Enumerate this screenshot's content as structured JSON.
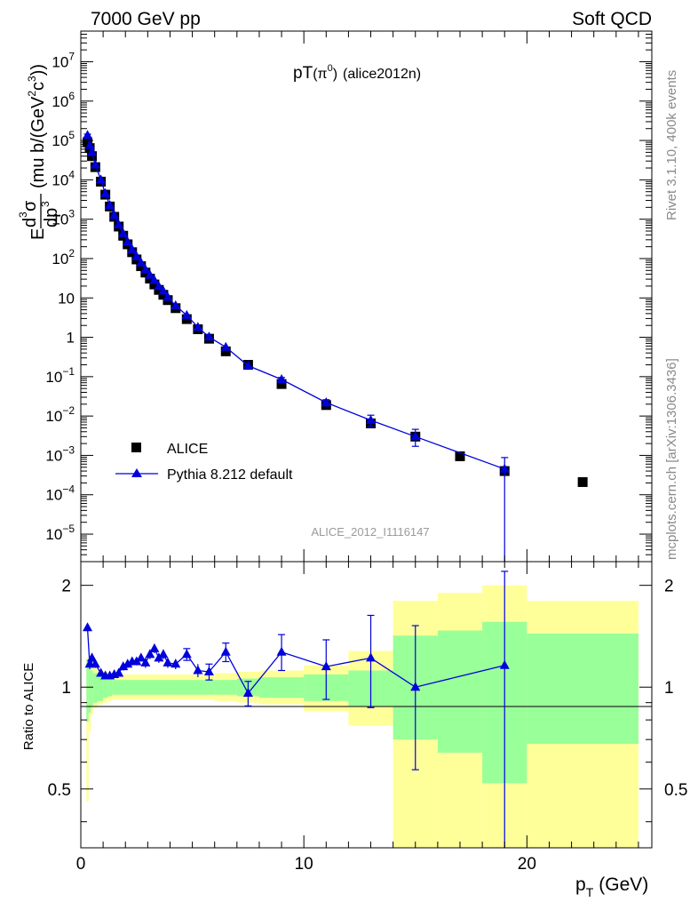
{
  "header": {
    "left": "7000 GeV pp",
    "right": "Soft QCD"
  },
  "title": {
    "main": "pT",
    "sub": "(π",
    "sup": "0",
    "close": ")",
    "tag": "(alice2012n)"
  },
  "side_labels": {
    "rivet": "Rivet 3.1.10,  400k events",
    "mcplots": "mcplots.cern.ch [arXiv:1306.3436]"
  },
  "watermark": "ALICE_2012_I1116147",
  "axes": {
    "xlabel_main": "p",
    "xlabel_sub": "T",
    "xlabel_unit": "(GeV)",
    "ratio_ylabel": "Ratio to ALICE",
    "ylabel": {
      "E": "E",
      "num_d": "d",
      "num_sup3": "3",
      "num_sigma": "σ",
      "den_dp": "dp",
      "den_sup3": "3",
      "unit_open": "(mu b/(GeV",
      "unit_sup2": "2",
      "unit_c": "c",
      "unit_sup3": "3",
      "unit_close": "))"
    }
  },
  "legend": {
    "data_label": "ALICE",
    "mc_label": "Pythia 8.212 default"
  },
  "colors": {
    "data": "#000000",
    "mc": "#0000dd",
    "band_inner": "#99ff99",
    "band_outer": "#ffff99"
  },
  "chart_data": {
    "type": "scatter",
    "x_axis": {
      "range": [
        0,
        25.6
      ],
      "ticks": [
        0,
        10,
        20
      ],
      "tick_labels": [
        "0",
        "10",
        "20"
      ]
    },
    "main_y_axis": {
      "scale": "log",
      "range": [
        2e-06,
        60000000.0
      ],
      "ticks": [
        1e-05,
        0.0001,
        0.001,
        0.01,
        0.1,
        1,
        10,
        100,
        1000.0,
        10000.0,
        100000.0,
        1000000.0,
        10000000.0
      ],
      "tick_labels": [
        {
          "base": "10",
          "exp": "−5"
        },
        {
          "base": "10",
          "exp": "−4"
        },
        {
          "base": "10",
          "exp": "−3"
        },
        {
          "base": "10",
          "exp": "−2"
        },
        {
          "base": "10",
          "exp": "−1"
        },
        {
          "base": "1",
          "exp": ""
        },
        {
          "base": "10",
          "exp": ""
        },
        {
          "base": "10",
          "exp": "2"
        },
        {
          "base": "10",
          "exp": "3"
        },
        {
          "base": "10",
          "exp": "4"
        },
        {
          "base": "10",
          "exp": "5"
        },
        {
          "base": "10",
          "exp": "6"
        },
        {
          "base": "10",
          "exp": "7"
        }
      ]
    },
    "ratio_y_axis": {
      "scale": "log",
      "range": [
        0.335,
        2.35
      ],
      "ticks": [
        0.5,
        1,
        2
      ],
      "tick_labels": [
        "0.5",
        "1",
        "2"
      ]
    },
    "series": [
      {
        "name": "ALICE",
        "marker": "square",
        "points": [
          {
            "x": 0.3,
            "y": 90000
          },
          {
            "x": 0.4,
            "y": 64000
          },
          {
            "x": 0.5,
            "y": 40000
          },
          {
            "x": 0.65,
            "y": 21000
          },
          {
            "x": 0.9,
            "y": 9000
          },
          {
            "x": 1.1,
            "y": 4200
          },
          {
            "x": 1.3,
            "y": 2100
          },
          {
            "x": 1.5,
            "y": 1150
          },
          {
            "x": 1.7,
            "y": 650
          },
          {
            "x": 1.9,
            "y": 380
          },
          {
            "x": 2.1,
            "y": 230
          },
          {
            "x": 2.3,
            "y": 145
          },
          {
            "x": 2.5,
            "y": 95
          },
          {
            "x": 2.7,
            "y": 64
          },
          {
            "x": 2.9,
            "y": 44
          },
          {
            "x": 3.1,
            "y": 31
          },
          {
            "x": 3.3,
            "y": 22
          },
          {
            "x": 3.5,
            "y": 16
          },
          {
            "x": 3.7,
            "y": 12
          },
          {
            "x": 3.9,
            "y": 8.8
          },
          {
            "x": 4.25,
            "y": 5.5
          },
          {
            "x": 4.75,
            "y": 2.9
          },
          {
            "x": 5.25,
            "y": 1.6
          },
          {
            "x": 5.75,
            "y": 0.92
          },
          {
            "x": 6.5,
            "y": 0.44
          },
          {
            "x": 7.5,
            "y": 0.2
          },
          {
            "x": 9.0,
            "y": 0.065
          },
          {
            "x": 11.0,
            "y": 0.019
          },
          {
            "x": 13.0,
            "y": 0.0065
          },
          {
            "x": 15.0,
            "y": 0.003
          },
          {
            "x": 17.0,
            "y": 0.00095
          },
          {
            "x": 19.0,
            "y": 0.0004
          },
          {
            "x": 22.5,
            "y": 0.00021
          }
        ]
      },
      {
        "name": "Pythia 8.212 default",
        "marker": "triangle",
        "points": [
          {
            "x": 0.3,
            "y": 135000,
            "ratio": 1.5,
            "rlo": 1.46,
            "rhi": 1.54,
            "ylo": 125000,
            "yhi": 145000
          },
          {
            "x": 0.4,
            "y": 75000,
            "ratio": 1.17,
            "rlo": 1.13,
            "rhi": 1.21
          },
          {
            "x": 0.5,
            "y": 50000,
            "ratio": 1.22,
            "rlo": 1.18,
            "rhi": 1.26
          },
          {
            "x": 0.65,
            "y": 24000,
            "ratio": 1.17,
            "rlo": 1.14,
            "rhi": 1.2
          },
          {
            "x": 0.9,
            "y": 10000,
            "ratio": 1.1,
            "rlo": 1.08,
            "rhi": 1.12
          },
          {
            "x": 1.1,
            "y": 4500,
            "ratio": 1.08,
            "rlo": 1.06,
            "rhi": 1.1
          },
          {
            "x": 1.3,
            "y": 2250,
            "ratio": 1.08,
            "rlo": 1.06,
            "rhi": 1.1
          },
          {
            "x": 1.5,
            "y": 1250,
            "ratio": 1.09,
            "rlo": 1.07,
            "rhi": 1.11
          },
          {
            "x": 1.7,
            "y": 720,
            "ratio": 1.1,
            "rlo": 1.08,
            "rhi": 1.12
          },
          {
            "x": 1.9,
            "y": 430,
            "ratio": 1.15,
            "rlo": 1.12,
            "rhi": 1.18
          },
          {
            "x": 2.1,
            "y": 265,
            "ratio": 1.17,
            "rlo": 1.14,
            "rhi": 1.2
          },
          {
            "x": 2.3,
            "y": 170,
            "ratio": 1.19,
            "rlo": 1.16,
            "rhi": 1.22
          },
          {
            "x": 2.5,
            "y": 113,
            "ratio": 1.19,
            "rlo": 1.16,
            "rhi": 1.22
          },
          {
            "x": 2.7,
            "y": 78,
            "ratio": 1.22,
            "rlo": 1.19,
            "rhi": 1.25
          },
          {
            "x": 2.9,
            "y": 52,
            "ratio": 1.18,
            "rlo": 1.14,
            "rhi": 1.22
          },
          {
            "x": 3.1,
            "y": 38,
            "ratio": 1.25,
            "rlo": 1.21,
            "rhi": 1.29
          },
          {
            "x": 3.3,
            "y": 28,
            "ratio": 1.3,
            "rlo": 1.26,
            "rhi": 1.34
          },
          {
            "x": 3.5,
            "y": 19.5,
            "ratio": 1.22,
            "rlo": 1.18,
            "rhi": 1.26
          },
          {
            "x": 3.7,
            "y": 15,
            "ratio": 1.25,
            "rlo": 1.21,
            "rhi": 1.29
          },
          {
            "x": 3.9,
            "y": 10.4,
            "ratio": 1.18,
            "rlo": 1.14,
            "rhi": 1.22
          },
          {
            "x": 4.25,
            "y": 6.4,
            "ratio": 1.17,
            "rlo": 1.13,
            "rhi": 1.21
          },
          {
            "x": 4.75,
            "y": 3.6,
            "ratio": 1.25,
            "rlo": 1.2,
            "rhi": 1.3
          },
          {
            "x": 5.25,
            "y": 1.8,
            "ratio": 1.12,
            "rlo": 1.07,
            "rhi": 1.17
          },
          {
            "x": 5.75,
            "y": 1.02,
            "ratio": 1.11,
            "rlo": 1.05,
            "rhi": 1.17
          },
          {
            "x": 6.5,
            "y": 0.56,
            "ratio": 1.27,
            "rlo": 1.19,
            "rhi": 1.35
          },
          {
            "x": 7.5,
            "y": 0.19,
            "ratio": 0.96,
            "rlo": 0.88,
            "rhi": 1.04
          },
          {
            "x": 9.0,
            "y": 0.085,
            "ratio": 1.27,
            "rlo": 1.12,
            "rhi": 1.43,
            "ylo": 0.075,
            "yhi": 0.095
          },
          {
            "x": 11.0,
            "y": 0.022,
            "ratio": 1.15,
            "rlo": 0.92,
            "rhi": 1.38,
            "ylo": 0.018,
            "yhi": 0.026
          },
          {
            "x": 13.0,
            "y": 0.0078,
            "ratio": 1.22,
            "rlo": 0.87,
            "rhi": 1.63,
            "ylo": 0.0055,
            "yhi": 0.0105
          },
          {
            "x": 15.0,
            "y": 0.003,
            "ratio": 1.0,
            "rlo": 0.57,
            "rhi": 1.52,
            "ylo": 0.0017,
            "yhi": 0.0046
          },
          {
            "x": 19.0,
            "y": 0.00045,
            "ratio": 1.16,
            "rlo": 0.26,
            "rhi": 2.2,
            "ylo": 1e-06,
            "yhi": 0.00088
          }
        ]
      }
    ],
    "uncertainty_bands": [
      {
        "x0": 0.25,
        "x1": 0.35,
        "inner": [
          0.79,
          1.21
        ],
        "outer": [
          0.46,
          1.22
        ]
      },
      {
        "x0": 0.35,
        "x1": 0.45,
        "inner": [
          0.84,
          1.16
        ],
        "outer": [
          0.74,
          1.18
        ]
      },
      {
        "x0": 0.45,
        "x1": 0.55,
        "inner": [
          0.88,
          1.12
        ],
        "outer": [
          0.83,
          1.16
        ]
      },
      {
        "x0": 0.55,
        "x1": 0.75,
        "inner": [
          0.9,
          1.1
        ],
        "outer": [
          0.87,
          1.14
        ]
      },
      {
        "x0": 0.75,
        "x1": 1.0,
        "inner": [
          0.91,
          1.09
        ],
        "outer": [
          0.89,
          1.12
        ]
      },
      {
        "x0": 1.0,
        "x1": 1.2,
        "inner": [
          0.93,
          1.07
        ],
        "outer": [
          0.9,
          1.11
        ]
      },
      {
        "x0": 1.2,
        "x1": 1.4,
        "inner": [
          0.94,
          1.06
        ],
        "outer": [
          0.91,
          1.1
        ]
      },
      {
        "x0": 1.4,
        "x1": 4.0,
        "inner": [
          0.95,
          1.05
        ],
        "outer": [
          0.92,
          1.09
        ]
      },
      {
        "x0": 4.0,
        "x1": 6.0,
        "inner": [
          0.95,
          1.05
        ],
        "outer": [
          0.92,
          1.09
        ]
      },
      {
        "x0": 6.0,
        "x1": 7.0,
        "inner": [
          0.95,
          1.05
        ],
        "outer": [
          0.91,
          1.1
        ]
      },
      {
        "x0": 7.0,
        "x1": 8.0,
        "inner": [
          0.94,
          1.06
        ],
        "outer": [
          0.9,
          1.11
        ]
      },
      {
        "x0": 8.0,
        "x1": 10.0,
        "inner": [
          0.93,
          1.07
        ],
        "outer": [
          0.89,
          1.12
        ]
      },
      {
        "x0": 10.0,
        "x1": 12.0,
        "inner": [
          0.91,
          1.09
        ],
        "outer": [
          0.85,
          1.16
        ]
      },
      {
        "x0": 12.0,
        "x1": 14.0,
        "inner": [
          0.88,
          1.12
        ],
        "outer": [
          0.77,
          1.28
        ]
      },
      {
        "x0": 14.0,
        "x1": 16.0,
        "inner": [
          0.7,
          1.42
        ],
        "outer": [
          0.335,
          1.8
        ]
      },
      {
        "x0": 16.0,
        "x1": 18.0,
        "inner": [
          0.64,
          1.47
        ],
        "outer": [
          0.335,
          1.9
        ]
      },
      {
        "x0": 18.0,
        "x1": 20.0,
        "inner": [
          0.52,
          1.56
        ],
        "outer": [
          0.335,
          2.0
        ]
      },
      {
        "x0": 20.0,
        "x1": 25.0,
        "inner": [
          0.68,
          1.44
        ],
        "outer": [
          0.335,
          1.8
        ]
      }
    ],
    "grid": false,
    "legend_position": "bottom-left"
  }
}
